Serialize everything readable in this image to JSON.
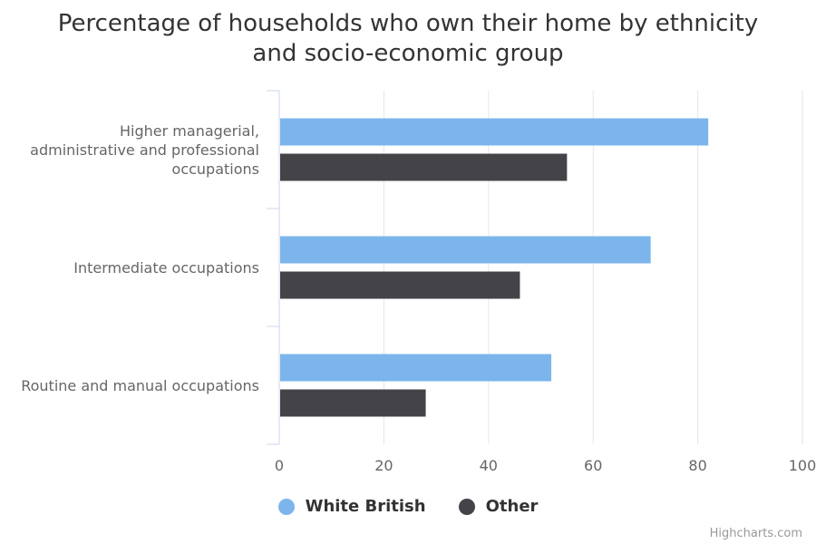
{
  "colors": {
    "series_1": "#7cb5ec",
    "series_2": "#434348",
    "grid": "#e6e6e6",
    "axis": "#ccd6eb",
    "label": "#666666"
  },
  "credits": "Highcharts.com",
  "chart_data": {
    "type": "bar",
    "orientation": "horizontal",
    "title": "Percentage of households who own their home by ethnicity and socio-economic group",
    "title_lines": [
      "Percentage of households who own their home by ethnicity",
      "and socio-economic group"
    ],
    "categories": [
      "Higher managerial, administrative and professional occupations",
      "Intermediate occupations",
      "Routine and manual occupations"
    ],
    "category_label_lines": [
      [
        "Higher managerial,",
        "administrative and professional",
        "occupations"
      ],
      [
        "Intermediate occupations"
      ],
      [
        "Routine and manual occupations"
      ]
    ],
    "series": [
      {
        "name": "White British",
        "values": [
          82,
          71,
          52
        ]
      },
      {
        "name": "Other",
        "values": [
          55,
          46,
          28
        ]
      }
    ],
    "xlim": [
      0,
      100
    ],
    "ticks": [
      0,
      20,
      40,
      60,
      80,
      100
    ],
    "grid": true,
    "legend_position": "bottom-center"
  }
}
